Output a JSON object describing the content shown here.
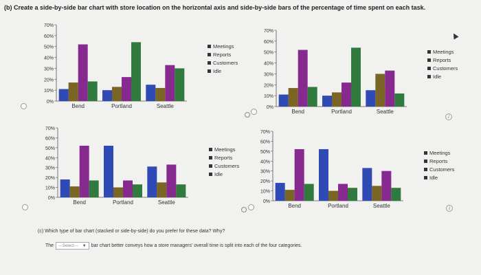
{
  "page": {
    "title": "(b) Create a side-by-side bar chart with store location on the horizontal axis and side-by-side bars of the percentage of time spent on each task.",
    "question": "(c) Which type of bar chart (stacked or side-by-side) do you prefer for these data? Why?",
    "answer_prefix": "The",
    "select_value": "---Select---",
    "answer_suffix": "bar chart better conveys how a store managers' overall time is split into each of the four categories.",
    "info_icon": "i"
  },
  "colors": {
    "Meetings": "#2f49b5",
    "Reports": "#7a6524",
    "Customers": "#872a8f",
    "Idle": "#2f7a3c",
    "Customers_c": "#2f7a3c",
    "Idle_c": "#872a8f"
  },
  "chart_data": [
    {
      "type": "bar",
      "categories": [
        "Bend",
        "Portland",
        "Seattle"
      ],
      "series": [
        {
          "name": "Meetings",
          "values": [
            11,
            10,
            15
          ]
        },
        {
          "name": "Reports",
          "values": [
            17,
            13,
            12
          ]
        },
        {
          "name": "Customers",
          "values": [
            52,
            22,
            33
          ]
        },
        {
          "name": "Idle",
          "values": [
            18,
            54,
            30
          ]
        }
      ],
      "ylim": [
        0,
        70
      ],
      "yticks": [
        "0%",
        "10%",
        "20%",
        "30%",
        "40%",
        "50%",
        "60%",
        "70%"
      ],
      "legend": [
        "Meetings",
        "Reports",
        "Customers",
        "Idle"
      ]
    },
    {
      "type": "bar",
      "categories": [
        "Bend",
        "Portland",
        "Seattle"
      ],
      "series": [
        {
          "name": "Meetings",
          "values": [
            11,
            10,
            15
          ]
        },
        {
          "name": "Reports",
          "values": [
            17,
            13,
            30
          ]
        },
        {
          "name": "Customers",
          "values": [
            52,
            22,
            33
          ]
        },
        {
          "name": "Idle",
          "values": [
            18,
            54,
            12
          ]
        }
      ],
      "ylim": [
        0,
        70
      ],
      "yticks": [
        "0%",
        "10%",
        "20%",
        "30%",
        "40%",
        "50%",
        "60%",
        "70%"
      ],
      "legend": [
        "Meetings",
        "Reports",
        "Customers",
        "Idle"
      ]
    },
    {
      "type": "bar",
      "categories": [
        "Bend",
        "Portland",
        "Seattle"
      ],
      "series": [
        {
          "name": "Meetings",
          "values": [
            18,
            52,
            31
          ]
        },
        {
          "name": "Reports",
          "values": [
            11,
            10,
            15
          ]
        },
        {
          "name": "Customers",
          "values": [
            52,
            17,
            33
          ]
        },
        {
          "name": "Idle",
          "values": [
            17,
            13,
            13
          ]
        }
      ],
      "ylim": [
        0,
        70
      ],
      "yticks": [
        "0%",
        "10%",
        "20%",
        "30%",
        "40%",
        "50%",
        "60%",
        "70%"
      ],
      "legend": [
        "Meetings",
        "Reports",
        "Customers",
        "Idle"
      ]
    },
    {
      "type": "bar",
      "categories": [
        "Bend",
        "Portland",
        "Seattle"
      ],
      "series": [
        {
          "name": "Meetings",
          "values": [
            18,
            52,
            33
          ]
        },
        {
          "name": "Reports",
          "values": [
            11,
            10,
            15
          ]
        },
        {
          "name": "Customers",
          "values": [
            52,
            17,
            30
          ]
        },
        {
          "name": "Idle",
          "values": [
            17,
            13,
            13
          ]
        }
      ],
      "ylim": [
        0,
        70
      ],
      "yticks": [
        "0%",
        "10%",
        "20%",
        "30%",
        "40%",
        "50%",
        "60%",
        "70%"
      ],
      "legend": [
        "Meetings",
        "Reports",
        "Customers",
        "Idle"
      ]
    }
  ]
}
